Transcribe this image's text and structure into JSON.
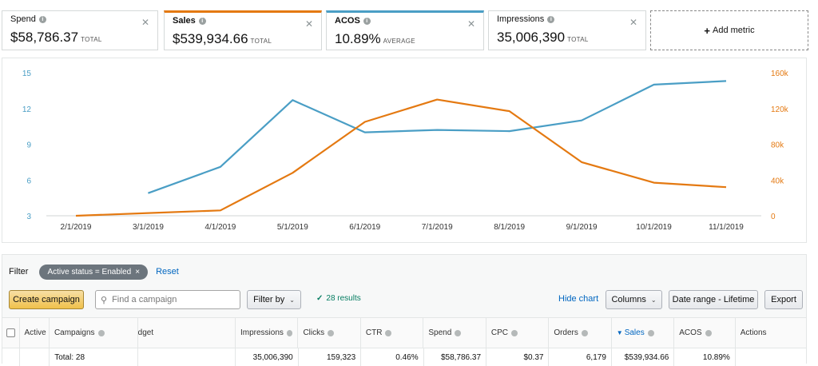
{
  "metrics": [
    {
      "name": "Spend",
      "value": "$58,786.37",
      "suffix": "TOTAL",
      "bold": false
    },
    {
      "name": "Sales",
      "value": "$539,934.66",
      "suffix": "TOTAL",
      "bold": true
    },
    {
      "name": "ACOS",
      "value": "10.89%",
      "suffix": "AVERAGE",
      "bold": true
    },
    {
      "name": "Impressions",
      "value": "35,006,390",
      "suffix": "TOTAL",
      "bold": false
    }
  ],
  "add_metric_label": "Add metric",
  "colors": {
    "acos_line": "#4a9ec5",
    "sales_line": "#e47911",
    "primary_button": "#f0c14b",
    "link": "#0066c0"
  },
  "chart_data": {
    "type": "line",
    "x": [
      "2/1/2019",
      "3/1/2019",
      "4/1/2019",
      "5/1/2019",
      "6/1/2019",
      "7/1/2019",
      "8/1/2019",
      "9/1/2019",
      "10/1/2019",
      "11/1/2019"
    ],
    "series": [
      {
        "name": "ACOS",
        "axis": "left",
        "color": "#4a9ec5",
        "values": [
          null,
          4.9,
          7.1,
          12.7,
          10.0,
          10.2,
          10.1,
          11.0,
          14.0,
          14.3
        ]
      },
      {
        "name": "Sales",
        "axis": "right",
        "color": "#e47911",
        "values": [
          0,
          3000,
          6000,
          48000,
          105000,
          130000,
          117000,
          60000,
          37000,
          32000
        ]
      }
    ],
    "y_left": {
      "ticks": [
        "15",
        "12",
        "9",
        "6",
        "3"
      ],
      "ylim": [
        3,
        15
      ]
    },
    "y_right": {
      "ticks": [
        "160k",
        "120k",
        "80k",
        "40k",
        "0"
      ],
      "ylim": [
        0,
        160000
      ]
    },
    "grid": false
  },
  "filter": {
    "label": "Filter",
    "chip": "Active status = Enabled",
    "chip_close": "×",
    "reset": "Reset"
  },
  "toolbar": {
    "create_campaign": "Create campaign",
    "search_placeholder": "Find a campaign",
    "filter_by": "Filter by",
    "results": "28 results",
    "hide_chart": "Hide chart",
    "columns": "Columns",
    "date_range": "Date range - Lifetime",
    "export": "Export"
  },
  "table": {
    "headers": [
      "Active",
      "Campaigns",
      "dget",
      "Impressions",
      "Clicks",
      "CTR",
      "Spend",
      "CPC",
      "Orders",
      "Sales",
      "ACOS",
      "Actions"
    ],
    "total": [
      "Total: 28",
      "",
      "35,006,390",
      "159,323",
      "0.46%",
      "$58,786.37",
      "$0.37",
      "6,179",
      "$539,934.66",
      "10.89%",
      ""
    ]
  }
}
